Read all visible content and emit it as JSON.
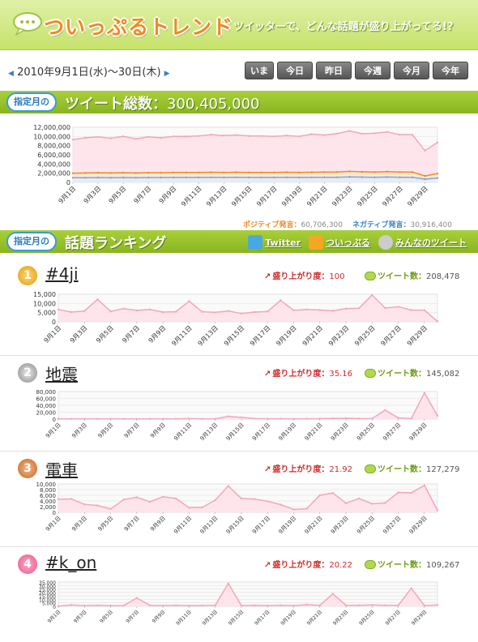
{
  "header": {
    "logo": "ついっぷるトレンド",
    "tagline": "ツイッターで、どんな話題が盛り上がってる!?"
  },
  "datebar": {
    "range": "2010年9月1日(水)～30日(木)",
    "buttons": [
      "いま",
      "今日",
      "昨日",
      "今週",
      "今月",
      "今年"
    ]
  },
  "total": {
    "badge": "指定月の",
    "title": "ツイート総数：",
    "value": "300,405,000",
    "legend_pos_label": "ポジティブ発言：",
    "legend_pos_value": "60,706,300",
    "legend_neg_label": "ネガティブ発言：",
    "legend_neg_value": "30,916,400"
  },
  "ranking_header": {
    "badge": "指定月の",
    "title": "話題ランキング",
    "links": [
      "Twitter",
      "ついっぷる",
      "みんなのツイート"
    ]
  },
  "rank_labels": {
    "up": "盛り上がり度：",
    "tweets": "ツイート数："
  },
  "ranks": [
    {
      "rank": "1",
      "keyword": "#4ji",
      "up": "100",
      "tweets": "208,478"
    },
    {
      "rank": "2",
      "keyword": "地震",
      "up": "35.16",
      "tweets": "145,082"
    },
    {
      "rank": "3",
      "keyword": "電車",
      "up": "21.92",
      "tweets": "127,279"
    },
    {
      "rank": "4",
      "keyword": "#k_on",
      "up": "20.22",
      "tweets": "109,267"
    }
  ],
  "colors": {
    "green": "#8ab520",
    "pink": "#f4a6b8",
    "orange": "#f08a1c",
    "blue": "#7ea6d8"
  },
  "chart_data": [
    {
      "type": "area",
      "x": [
        "9月1日",
        "9月2日",
        "9月3日",
        "9月4日",
        "9月5日",
        "9月6日",
        "9月7日",
        "9月8日",
        "9月9日",
        "9月10日",
        "9月11日",
        "9月12日",
        "9月13日",
        "9月14日",
        "9月15日",
        "9月16日",
        "9月17日",
        "9月18日",
        "9月19日",
        "9月20日",
        "9月21日",
        "9月22日",
        "9月23日",
        "9月24日",
        "9月25日",
        "9月26日",
        "9月27日",
        "9月28日",
        "9月29日",
        "9月30日"
      ],
      "xticks": [
        "9月1日",
        "9月3日",
        "9月5日",
        "9月7日",
        "9月9日",
        "9月11日",
        "9月13日",
        "9月15日",
        "9月17日",
        "9月19日",
        "9月21日",
        "9月23日",
        "9月25日",
        "9月27日",
        "9月29日"
      ],
      "yticks": [
        "0",
        "2,000,000",
        "4,000,000",
        "6,000,000",
        "8,000,000",
        "10,000,000",
        "12,000,000"
      ],
      "ylim": [
        0,
        12000000
      ],
      "series": [
        {
          "values": [
            9300000,
            9700000,
            9900000,
            9600000,
            10000000,
            9500000,
            9900000,
            9700000,
            10000000,
            10000000,
            10100000,
            10400000,
            10200000,
            10300000,
            10100000,
            10100000,
            10000000,
            10200000,
            10000000,
            10500000,
            10300000,
            10600000,
            11200000,
            10600000,
            10700000,
            11000000,
            10400000,
            10400000,
            6900000,
            8700000
          ]
        },
        {
          "values": [
            2000000,
            2050000,
            2100000,
            2050000,
            2100000,
            2050000,
            2100000,
            2100000,
            2150000,
            2150000,
            2150000,
            2200000,
            2150000,
            2200000,
            2150000,
            2150000,
            2150000,
            2200000,
            2150000,
            2200000,
            2250000,
            2250000,
            2400000,
            2300000,
            2250000,
            2350000,
            2250000,
            2250000,
            1400000,
            1900000
          ]
        },
        {
          "values": [
            1000000,
            1020000,
            1050000,
            1030000,
            1050000,
            1020000,
            1050000,
            1050000,
            1070000,
            1070000,
            1070000,
            1100000,
            1080000,
            1100000,
            1080000,
            1080000,
            1080000,
            1100000,
            1080000,
            1100000,
            1120000,
            1120000,
            1200000,
            1150000,
            1120000,
            1170000,
            1120000,
            1120000,
            700000,
            950000
          ]
        }
      ]
    },
    {
      "type": "area",
      "title": "#4ji",
      "xticks": [
        "9月1日",
        "9月3日",
        "9月5日",
        "9月7日",
        "9月9日",
        "9月11日",
        "9月13日",
        "9月15日",
        "9月17日",
        "9月19日",
        "9月21日",
        "9月23日",
        "9月25日",
        "9月27日",
        "9月29日"
      ],
      "yticks": [
        "0",
        "5,000",
        "10,000",
        "15,000"
      ],
      "ylim": [
        0,
        15000
      ],
      "series": [
        {
          "values": [
            6700,
            5300,
            5900,
            12200,
            5700,
            7200,
            6200,
            6700,
            5300,
            5500,
            11200,
            5500,
            5100,
            5900,
            4500,
            5300,
            5600,
            11700,
            6200,
            6700,
            6400,
            6000,
            7200,
            7400,
            14600,
            7500,
            8200,
            6400,
            6300,
            200
          ]
        }
      ]
    },
    {
      "type": "area",
      "title": "地震",
      "xticks": [
        "9月1日",
        "9月3日",
        "9月5日",
        "9月7日",
        "9月9日",
        "9月11日",
        "9月13日",
        "9月15日",
        "9月17日",
        "9月19日",
        "9月21日",
        "9月23日",
        "9月25日",
        "9月27日",
        "9月29日"
      ],
      "yticks": [
        "0",
        "20,000",
        "40,000",
        "60,000",
        "80,000"
      ],
      "ylim": [
        0,
        80000
      ],
      "series": [
        {
          "values": [
            700,
            600,
            500,
            500,
            600,
            500,
            500,
            600,
            500,
            700,
            1300,
            700,
            700,
            8000,
            5000,
            1500,
            900,
            1000,
            800,
            900,
            1200,
            1800,
            2400,
            1200,
            1500,
            26000,
            3500,
            1300,
            76000,
            10000
          ]
        }
      ]
    },
    {
      "type": "area",
      "title": "電車",
      "xticks": [
        "9月1日",
        "9月3日",
        "9月5日",
        "9月7日",
        "9月9日",
        "9月11日",
        "9月13日",
        "9月15日",
        "9月17日",
        "9月19日",
        "9月21日",
        "9月23日",
        "9月25日",
        "9月27日",
        "9月29日"
      ],
      "yticks": [
        "0",
        "2,000",
        "4,000",
        "6,000",
        "8,000",
        "10,000"
      ],
      "ylim": [
        0,
        10000
      ],
      "series": [
        {
          "values": [
            4600,
            4700,
            2800,
            2400,
            1200,
            4500,
            5300,
            3700,
            5500,
            4900,
            1600,
            1700,
            4300,
            9300,
            4900,
            4700,
            3900,
            2700,
            1000,
            1300,
            6000,
            6800,
            3200,
            4900,
            3000,
            3300,
            7000,
            6900,
            9500,
            700
          ]
        }
      ]
    },
    {
      "type": "area",
      "title": "#k_on",
      "xticks": [
        "9月1日",
        "9月3日",
        "9月5日",
        "9月7日",
        "9月9日",
        "9月11日",
        "9月13日",
        "9月15日",
        "9月17日",
        "9月19日",
        "9月21日",
        "9月23日",
        "9月25日",
        "9月27日",
        "9月29日"
      ],
      "yticks": [
        "0",
        "5,000",
        "10,000",
        "15,000",
        "20,000",
        "25,000",
        "30,000",
        "35,000"
      ],
      "ylim": [
        0,
        35000
      ],
      "series": [
        {
          "values": [
            300,
            2000,
            1000,
            1500,
            1000,
            1200,
            12000,
            1500,
            1000,
            1500,
            1000,
            1200,
            1500,
            33000,
            1200,
            1500,
            1000,
            1500,
            1000,
            2500,
            1500,
            18000,
            1500,
            1500,
            2000,
            1500,
            1500,
            26000,
            1000,
            2000
          ]
        }
      ]
    }
  ]
}
